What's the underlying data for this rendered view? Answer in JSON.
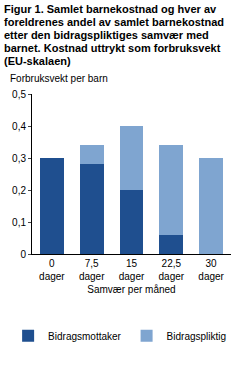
{
  "chart_data": {
    "type": "bar",
    "title": "Figur 1. Samlet barnekostnad og hver av foreldrenes andel av samlet barnekostnad etter den bidragspliktiges samvær med barnet. Kostnad uttrykt som forbruksvekt (EU-skalaen)",
    "y_label": "Forbruksvekt per barn",
    "x_label": "Samvær per måned",
    "categories": [
      "0 dager",
      "7,5 dager",
      "15 dager",
      "22,5 dager",
      "30 dager"
    ],
    "series": [
      {
        "name": "Bidragsmottaker",
        "color": "#1f4f8f",
        "values": [
          0.3,
          0.28,
          0.2,
          0.06,
          0
        ]
      },
      {
        "name": "Bidragspliktig",
        "color": "#7fa5d0",
        "values": [
          0,
          0.06,
          0.2,
          0.28,
          0.3
        ]
      }
    ],
    "stacked": true,
    "ylim": [
      0,
      0.5
    ],
    "yticks": [
      0,
      {
        "value": 0.1,
        "label": "0,1"
      },
      {
        "value": 0.2,
        "label": "0,2"
      },
      {
        "value": 0.3,
        "label": "0,3"
      },
      {
        "value": 0.4,
        "label": "0,4"
      },
      {
        "value": 0.5,
        "label": "0,5"
      }
    ],
    "grid": false,
    "legend": "bottom"
  }
}
